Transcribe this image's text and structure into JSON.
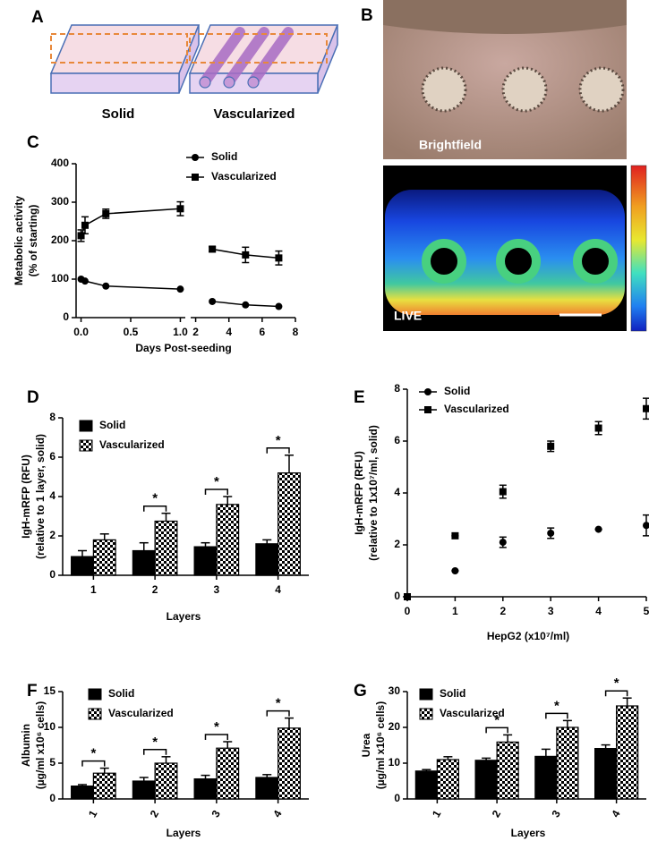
{
  "panels": {
    "A": {
      "letter": "A",
      "labels": [
        "Solid",
        "Vascularized"
      ]
    },
    "B": {
      "letter": "B",
      "labels": [
        "Brightfield",
        "LIVE"
      ]
    }
  },
  "chart_data": [
    {
      "type": "line",
      "panel_label": "C",
      "ylabel": [
        "Metabolic activity",
        "(% of starting)"
      ],
      "xlabel": "Days Post-seeding",
      "x": [
        0,
        0.04,
        0.25,
        1,
        3,
        5,
        7
      ],
      "series": [
        {
          "name": "Solid",
          "color": "#000000",
          "marker": "circle",
          "values": [
            100,
            95,
            82,
            74,
            42,
            33,
            29
          ]
        },
        {
          "name": "Vascularized",
          "color": "#000000",
          "marker": "square",
          "values": [
            213,
            240,
            270,
            283,
            178,
            163,
            155
          ],
          "errors": [
            15,
            22,
            12,
            18,
            6,
            20,
            18
          ]
        }
      ],
      "ylim": [
        0,
        400
      ],
      "yticks": [
        0,
        100,
        200,
        300,
        400
      ],
      "x_segments": [
        {
          "xlim": [
            -0.05,
            1.05
          ],
          "xticks": [
            {
              "value": 0,
              "label": "0.0"
            },
            {
              "value": 0.5,
              "label": "0.5"
            },
            {
              "value": 1,
              "label": "1.0"
            }
          ]
        },
        {
          "xlim": [
            1.7,
            8
          ],
          "xticks": [
            2,
            4,
            6,
            8
          ]
        }
      ],
      "legend": "upper right"
    },
    {
      "type": "bar",
      "panel_label": "D",
      "ylabel": [
        "IgH-mRFP (RFU)",
        "(relative to 1 layer, solid)"
      ],
      "xlabel": "Layers",
      "categories": [
        "1",
        "2",
        "3",
        "4"
      ],
      "series": [
        {
          "name": "Solid",
          "color": "#000000",
          "values": [
            0.95,
            1.25,
            1.45,
            1.6
          ],
          "errors": [
            0.3,
            0.4,
            0.2,
            0.2
          ]
        },
        {
          "name": "Vascularized",
          "color": "#000000",
          "pattern": "checker",
          "values": [
            1.8,
            2.75,
            3.6,
            5.2
          ],
          "errors": [
            0.3,
            0.4,
            0.4,
            0.9
          ]
        }
      ],
      "ylim": [
        0,
        8
      ],
      "yticks": [
        0,
        2,
        4,
        6,
        8
      ],
      "significance": {
        "text": "*",
        "categories": [
          "2",
          "3",
          "4"
        ]
      },
      "legend": "upper left"
    },
    {
      "type": "scatter",
      "panel_label": "E",
      "ylabel": [
        "IgH-mRFP (RFU)",
        "(relative to 1x10⁷/ml, solid)"
      ],
      "xlabel": "HepG2 (x10⁷/ml)",
      "x": [
        0,
        1,
        2,
        3,
        4,
        5
      ],
      "series": [
        {
          "name": "Solid",
          "color": "#000000",
          "marker": "circle",
          "values": [
            0,
            1.0,
            2.1,
            2.45,
            2.6,
            2.75
          ],
          "errors": [
            0,
            0,
            0.2,
            0.2,
            0,
            0.4
          ]
        },
        {
          "name": "Vascularized",
          "color": "#000000",
          "marker": "square",
          "values": [
            0,
            2.35,
            4.05,
            5.8,
            6.5,
            7.25
          ],
          "errors": [
            0,
            0,
            0.25,
            0.2,
            0.25,
            0.4
          ]
        }
      ],
      "xlim": [
        0,
        5
      ],
      "xticks": [
        0,
        1,
        2,
        3,
        4,
        5
      ],
      "ylim": [
        0,
        8
      ],
      "yticks": [
        0,
        2,
        4,
        6,
        8
      ],
      "legend": "upper left"
    },
    {
      "type": "bar",
      "panel_label": "F",
      "ylabel": [
        "Albumin",
        "(µg/ml x10⁶ cells)"
      ],
      "xlabel": "Layers",
      "categories": [
        "1",
        "2",
        "3",
        "4"
      ],
      "series": [
        {
          "name": "Solid",
          "color": "#000000",
          "values": [
            1.8,
            2.5,
            2.8,
            3.0
          ],
          "errors": [
            0.2,
            0.5,
            0.5,
            0.4
          ]
        },
        {
          "name": "Vascularized",
          "color": "#000000",
          "pattern": "checker",
          "values": [
            3.6,
            5.0,
            7.1,
            9.9
          ],
          "errors": [
            0.7,
            0.9,
            0.9,
            1.4
          ]
        }
      ],
      "ylim": [
        0,
        15
      ],
      "yticks": [
        0,
        5,
        10,
        15
      ],
      "significance": {
        "text": "*",
        "categories": [
          "1",
          "2",
          "3",
          "4"
        ]
      },
      "legend": "upper left"
    },
    {
      "type": "bar",
      "panel_label": "G",
      "ylabel": [
        "Urea",
        "(µg/ml x10⁶ cells)"
      ],
      "xlabel": "Layers",
      "categories": [
        "1",
        "2",
        "3",
        "4"
      ],
      "series": [
        {
          "name": "Solid",
          "color": "#000000",
          "values": [
            7.8,
            10.8,
            11.9,
            14.1
          ],
          "errors": [
            0.4,
            0.6,
            2.0,
            1.0
          ]
        },
        {
          "name": "Vascularized",
          "color": "#000000",
          "pattern": "checker",
          "values": [
            11.0,
            15.9,
            20.0,
            26.0
          ],
          "errors": [
            0.8,
            2.0,
            1.9,
            2.2
          ]
        }
      ],
      "ylim": [
        0,
        30
      ],
      "yticks": [
        0,
        10,
        20,
        30
      ],
      "significance": {
        "text": "*",
        "categories": [
          "2",
          "3",
          "4"
        ]
      },
      "legend": "upper left"
    }
  ]
}
